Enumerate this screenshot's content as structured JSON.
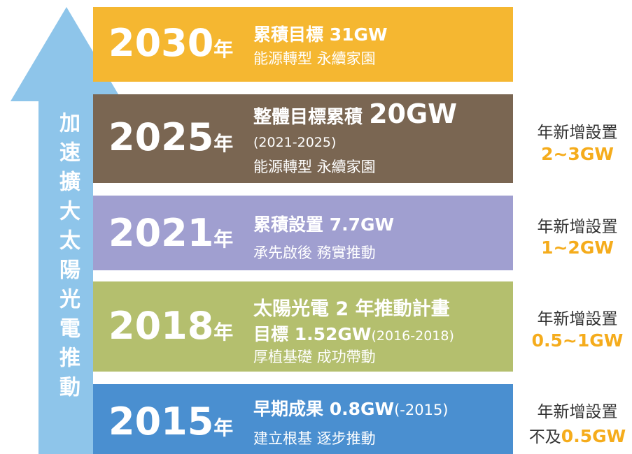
{
  "arrow_text": "加速擴大太陽光電推動",
  "rows": [
    {
      "year": "2030",
      "year_suffix": "年",
      "lines": [
        [
          "累積目標 31GW"
        ],
        [
          "能源轉型 永續家園"
        ]
      ]
    },
    {
      "year": "2025",
      "year_suffix": "年",
      "lines": [
        [
          "整體目標累積 ",
          "20GW"
        ],
        [
          "(2021-2025)"
        ],
        [
          "能源轉型 永續家園"
        ]
      ],
      "annual": {
        "label": "年新增設置",
        "value": [
          "2~3GW"
        ]
      }
    },
    {
      "year": "2021",
      "year_suffix": "年",
      "lines": [
        [
          "累積設置 7.7GW"
        ],
        [
          "承先啟後 務實推動"
        ]
      ],
      "annual": {
        "label": "年新增設置",
        "value": [
          "1~2GW"
        ]
      }
    },
    {
      "year": "2018",
      "year_suffix": "年",
      "lines": [
        [
          "太陽光電 2 年推動計畫"
        ],
        [
          "目標 1.52GW",
          "(2016-2018)"
        ],
        [
          "厚植基礎 成功帶動"
        ]
      ],
      "annual": {
        "label": "年新增設置",
        "value": [
          "0.5~1GW"
        ]
      }
    },
    {
      "year": "2015",
      "year_suffix": "年",
      "lines": [
        [
          "早期成果 0.8GW",
          "(-2015)"
        ],
        [
          "建立根基 逐步推動"
        ]
      ],
      "annual": {
        "label": "年新增設置",
        "value": [
          "不及",
          "0.5GW"
        ]
      }
    }
  ]
}
